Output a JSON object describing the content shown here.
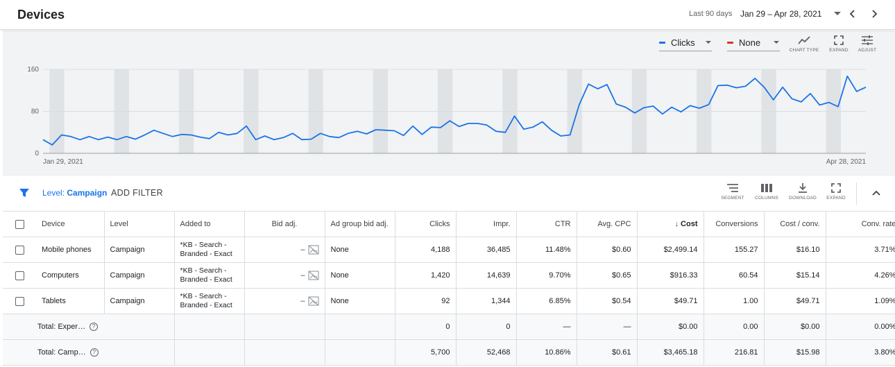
{
  "header": {
    "title": "Devices",
    "date_label": "Last 90 days",
    "date_range": "Jan 29 – Apr 28, 2021"
  },
  "chart_controls": {
    "metric_1": "Clicks",
    "metric_1_color": "#1a73e8",
    "metric_2": "None",
    "metric_2_color": "#d93025",
    "tool_chart_type": "CHART TYPE",
    "tool_expand": "EXPAND",
    "tool_adjust": "ADJUST"
  },
  "chart_data": {
    "type": "line",
    "series": [
      {
        "name": "Clicks",
        "color": "#1a73e8",
        "values": [
          26,
          16,
          35,
          32,
          26,
          32,
          26,
          31,
          26,
          32,
          27,
          35,
          44,
          38,
          32,
          36,
          35,
          31,
          28,
          40,
          35,
          38,
          52,
          26,
          33,
          26,
          30,
          38,
          26,
          27,
          38,
          32,
          30,
          38,
          42,
          37,
          45,
          44,
          43,
          34,
          52,
          36,
          50,
          49,
          62,
          51,
          57,
          57,
          54,
          42,
          40,
          71,
          46,
          50,
          60,
          44,
          33,
          35,
          93,
          132,
          123,
          131,
          94,
          88,
          77,
          87,
          90,
          75,
          88,
          79,
          91,
          86,
          93,
          129,
          130,
          125,
          128,
          143,
          126,
          102,
          126,
          104,
          98,
          114,
          92,
          97,
          89,
          147,
          118,
          126
        ]
      }
    ],
    "x_start_label": "Jan 29, 2021",
    "x_end_label": "Apr 28, 2021",
    "y_ticks": [
      0,
      80,
      160
    ],
    "ylim": [
      0,
      160
    ],
    "weekend_bands": true,
    "grid": true
  },
  "filter_bar": {
    "level_prefix": "Level:",
    "level_value": "Campaign",
    "add_filter": "ADD FILTER",
    "tool_segment": "SEGMENT",
    "tool_columns": "COLUMNS",
    "tool_download": "DOWNLOAD",
    "tool_expand": "EXPAND"
  },
  "table": {
    "columns": {
      "device": "Device",
      "level": "Level",
      "added_to": "Added to",
      "bid_adj": "Bid adj.",
      "ad_group_bid_adj": "Ad group bid adj.",
      "clicks": "Clicks",
      "impr": "Impr.",
      "ctr": "CTR",
      "avg_cpc": "Avg. CPC",
      "cost": "Cost",
      "conversions": "Conversions",
      "cost_conv": "Cost / conv.",
      "conv_rate": "Conv. rate"
    },
    "rows": [
      {
        "device": "Mobile phones",
        "level": "Campaign",
        "added_to_1": "*KB - Search -",
        "added_to_2": "Branded - Exact",
        "bid_adj": "–",
        "ad_group_bid_adj": "None",
        "clicks": "4,188",
        "impr": "36,485",
        "ctr": "11.48%",
        "avg_cpc": "$0.60",
        "cost": "$2,499.14",
        "conversions": "155.27",
        "cost_conv": "$16.10",
        "conv_rate": "3.71%"
      },
      {
        "device": "Computers",
        "level": "Campaign",
        "added_to_1": "*KB - Search -",
        "added_to_2": "Branded - Exact",
        "bid_adj": "–",
        "ad_group_bid_adj": "None",
        "clicks": "1,420",
        "impr": "14,639",
        "ctr": "9.70%",
        "avg_cpc": "$0.65",
        "cost": "$916.33",
        "conversions": "60.54",
        "cost_conv": "$15.14",
        "conv_rate": "4.26%"
      },
      {
        "device": "Tablets",
        "level": "Campaign",
        "added_to_1": "*KB - Search -",
        "added_to_2": "Branded - Exact",
        "bid_adj": "–",
        "ad_group_bid_adj": "None",
        "clicks": "92",
        "impr": "1,344",
        "ctr": "6.85%",
        "avg_cpc": "$0.54",
        "cost": "$49.71",
        "conversions": "1.00",
        "cost_conv": "$49.71",
        "conv_rate": "1.09%"
      }
    ],
    "totals": [
      {
        "label": "Total: Exper…",
        "clicks": "0",
        "impr": "0",
        "ctr": "—",
        "avg_cpc": "—",
        "cost": "$0.00",
        "conversions": "0.00",
        "cost_conv": "$0.00",
        "conv_rate": "0.00%"
      },
      {
        "label": "Total: Camp…",
        "clicks": "5,700",
        "impr": "52,468",
        "ctr": "10.86%",
        "avg_cpc": "$0.61",
        "cost": "$3,465.18",
        "conversions": "216.81",
        "cost_conv": "$15.98",
        "conv_rate": "3.80%"
      }
    ],
    "help_glyph": "?"
  }
}
